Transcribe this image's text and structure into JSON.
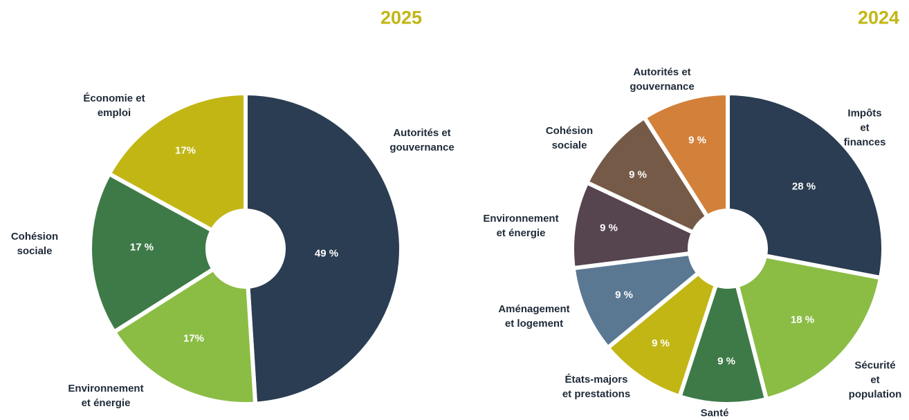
{
  "chart_data": [
    {
      "type": "pie",
      "title": "2025",
      "categories": [
        "Autorités et\ngouvernance",
        "Environnement\net énergie",
        "Cohésion\nsociale",
        "Économie et\nemploi"
      ],
      "values": [
        49,
        17,
        17,
        17
      ],
      "value_labels": [
        "49 %",
        "17%",
        "17 %",
        "17%"
      ],
      "colors": [
        "#2a3d52",
        "#8bbd45",
        "#3e7a48",
        "#c2b615"
      ]
    },
    {
      "type": "pie",
      "title": "2024",
      "categories": [
        "Impôts et\nfinances",
        "Sécurité et\npopulation",
        "Santé",
        "États-majors\net prestations",
        "Aménagement\net logement",
        "Environnement\net énergie",
        "Cohésion\nsociale",
        "Autorités et\ngouvernance"
      ],
      "values": [
        28,
        18,
        9,
        9,
        9,
        9,
        9,
        9
      ],
      "value_labels": [
        "28 %",
        "18 %",
        "9 %",
        "9 %",
        "9 %",
        "9 %",
        "9 %",
        "9 %"
      ],
      "colors": [
        "#2a3d52",
        "#8bbd45",
        "#3e7a48",
        "#c2b615",
        "#5b7893",
        "#56444f",
        "#765a48",
        "#d3803a"
      ]
    }
  ]
}
